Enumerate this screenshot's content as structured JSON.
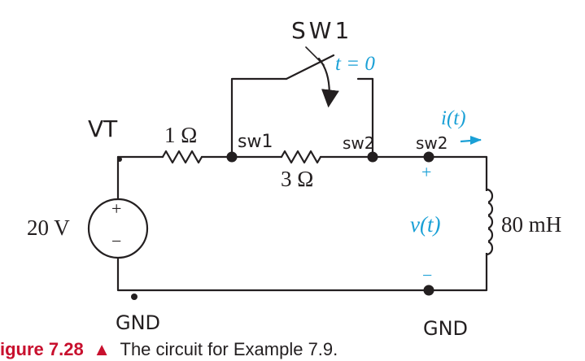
{
  "labels": {
    "switch_handwritten": "SW1",
    "switch_time": "t = 0",
    "source_node": "VT",
    "resistor1": "1 Ω",
    "resistor2": "3 Ω",
    "node_sw1": "sw1",
    "node_sw2_a": "sw2",
    "node_sw2_b": "sw2",
    "current": "i(t)",
    "source_value": "20 V",
    "source_plus": "+",
    "source_minus": "−",
    "voltage": "v(t)",
    "voltage_plus": "+",
    "voltage_minus": "−",
    "inductor": "80 mH",
    "ground_left": "GND",
    "ground_right": "GND"
  },
  "caption": {
    "prefix": "igure 7.28",
    "marker": "▲",
    "text": "The circuit for Example 7.9."
  },
  "colors": {
    "wire": "#231f20",
    "accent_blue": "#1aa0d6",
    "caption_red": "#c8102e"
  }
}
